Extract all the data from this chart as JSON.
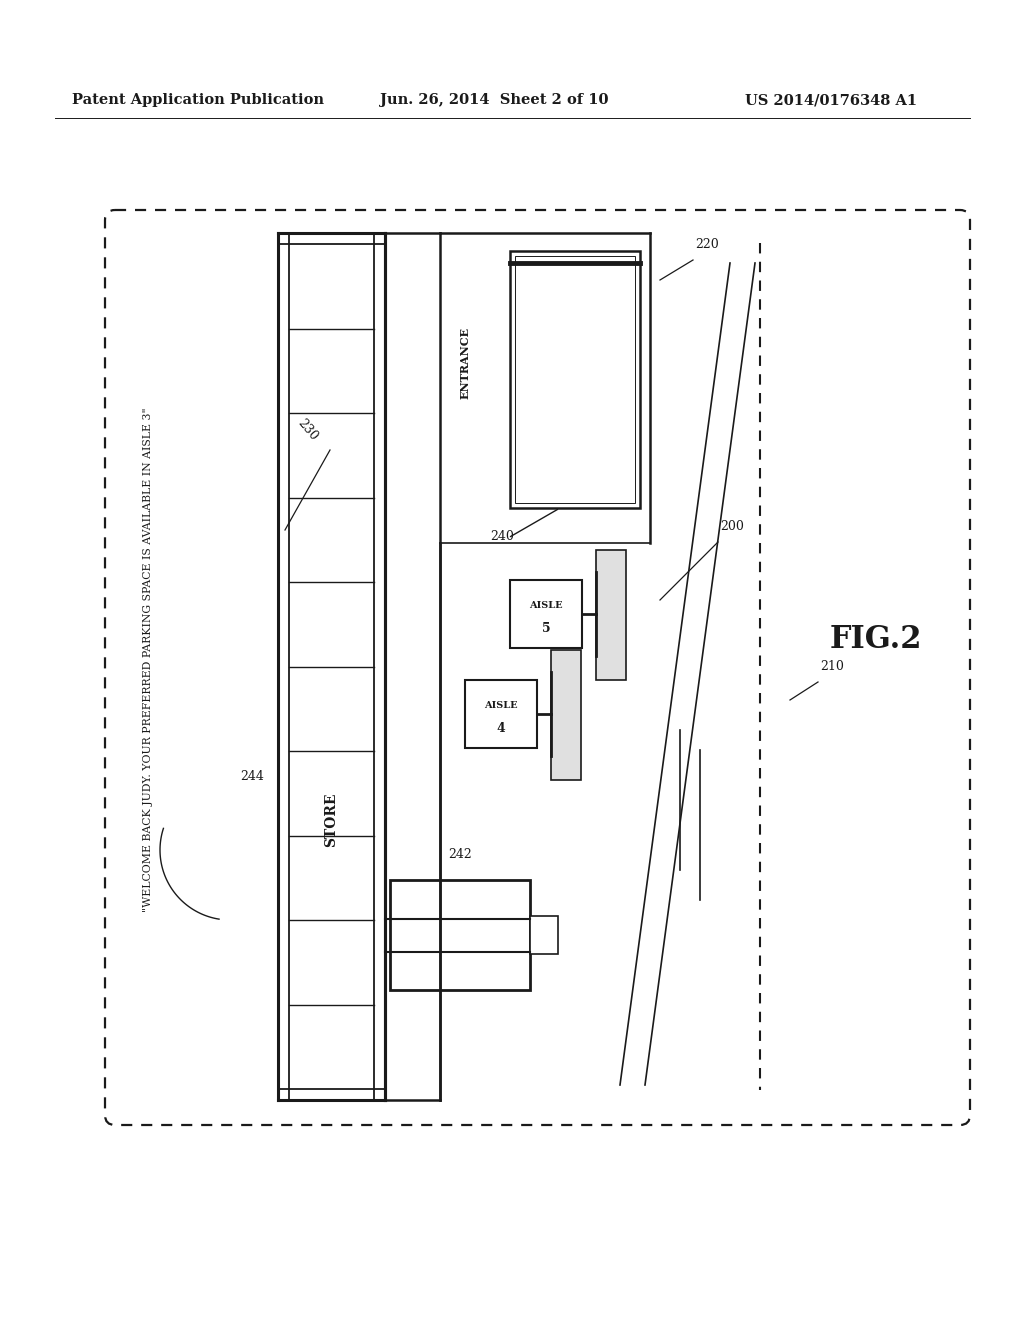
{
  "header_left": "Patent Application Publication",
  "header_mid": "Jun. 26, 2014  Sheet 2 of 10",
  "header_right": "US 2014/0176348 A1",
  "fig_label": "FIG.2",
  "bg": "#ffffff",
  "lc": "#1a1a1a",
  "label_200": "200",
  "label_210": "210",
  "label_220": "220",
  "label_230": "230",
  "label_240": "240",
  "label_242": "242",
  "label_244": "244",
  "store_label": "STORE",
  "entrance_label": "ENTRANCE",
  "aisle4_text": "AISLE\n4",
  "aisle5_text": "AISLE\n5",
  "welcome_text": "\"WELCOME BACK JUDY. YOUR PREFERRED PARKING SPACE IS AVAILABLE IN AISLE 3\""
}
